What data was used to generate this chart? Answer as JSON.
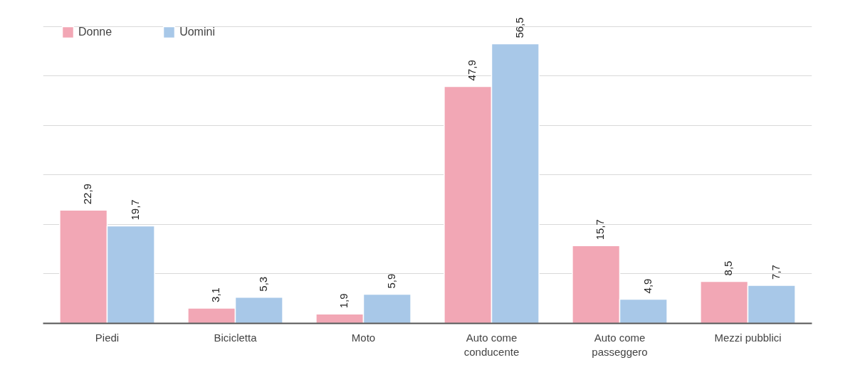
{
  "chart_data": {
    "type": "bar",
    "categories": [
      "Piedi",
      "Bicicletta",
      "Moto",
      "Auto come\nconducente",
      "Auto come\npasseggero",
      "Mezzi pubblici"
    ],
    "series": [
      {
        "name": "Donne",
        "color": "#f2a7b5",
        "values": [
          22.9,
          3.1,
          1.9,
          47.9,
          15.7,
          8.5
        ],
        "value_labels": [
          "22,9",
          "3,1",
          "1,9",
          "47,9",
          "15,7",
          "8,5"
        ]
      },
      {
        "name": "Uomini",
        "color": "#a8c8e8",
        "values": [
          19.7,
          5.3,
          5.9,
          56.5,
          4.9,
          7.7
        ],
        "value_labels": [
          "19,7",
          "5,3",
          "5,9",
          "56,5",
          "4,9",
          "7,7"
        ]
      }
    ],
    "grid": "y",
    "legend": "top left",
    "tick_labels": "x"
  }
}
